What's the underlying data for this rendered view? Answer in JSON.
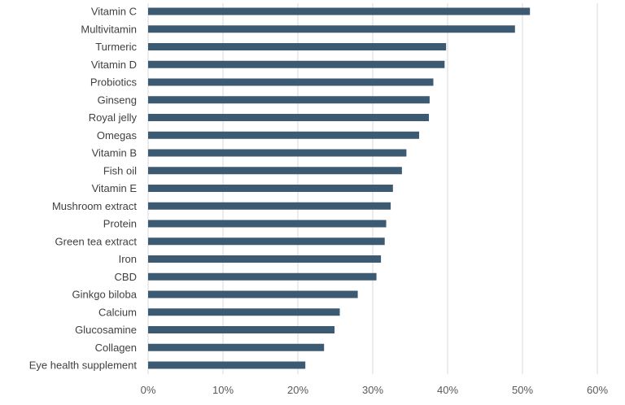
{
  "chart_data": {
    "type": "bar",
    "orientation": "horizontal",
    "categories": [
      "Vitamin C",
      "Multivitamin",
      "Turmeric",
      "Vitamin D",
      "Probiotics",
      "Ginseng",
      "Royal jelly",
      "Omegas",
      "Vitamin B",
      "Fish oil",
      "Vitamin E",
      "Mushroom extract",
      "Protein",
      "Green tea extract",
      "Iron",
      "CBD",
      "Ginkgo biloba",
      "Calcium",
      "Glucosamine",
      "Collagen",
      "Eye health supplement"
    ],
    "values": [
      51,
      49,
      39.8,
      39.6,
      38.1,
      37.6,
      37.5,
      36.2,
      34.5,
      33.9,
      32.7,
      32.4,
      31.8,
      31.6,
      31.1,
      30.5,
      28,
      25.6,
      24.9,
      23.5,
      21
    ],
    "xlim": [
      0,
      60
    ],
    "xticks": [
      "0%",
      "10%",
      "20%",
      "30%",
      "40%",
      "50%",
      "60%"
    ],
    "tick_values": [
      0,
      10,
      20,
      30,
      40,
      50,
      60
    ],
    "grid": true,
    "bar_color": "#3d5a73",
    "grid_color": "#d9d9d9"
  }
}
